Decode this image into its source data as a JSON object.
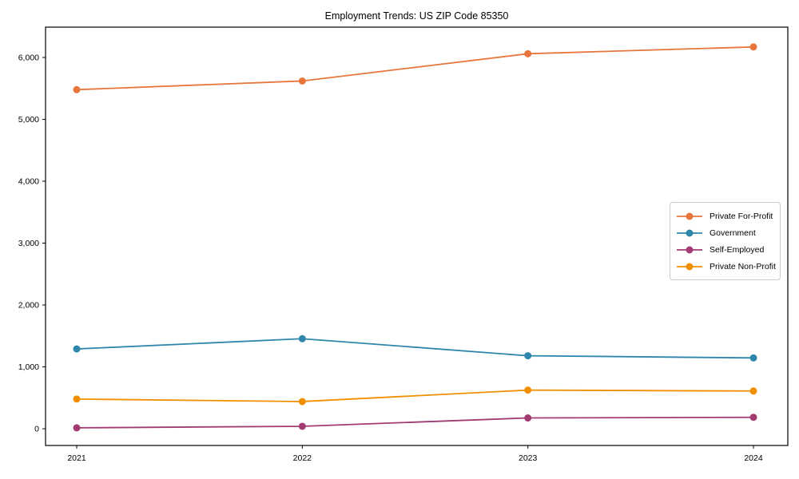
{
  "chart_data": {
    "type": "line",
    "title": "Employment Trends: US ZIP Code 85350",
    "xlabel": "",
    "ylabel": "",
    "grid": false,
    "legend_position": "center-right",
    "marker": "circle",
    "x": [
      2021,
      2022,
      2023,
      2024
    ],
    "x_tick_labels": [
      "2021",
      "2022",
      "2023",
      "2024"
    ],
    "y_ticks": [
      0,
      1000,
      2000,
      3000,
      4000,
      5000,
      6000
    ],
    "y_tick_labels": [
      "0",
      "1,000",
      "2,000",
      "3,000",
      "4,000",
      "5,000",
      "6,000"
    ],
    "ylim": [
      -270,
      6490
    ],
    "series": [
      {
        "name": "Private For-Profit",
        "color": "#E8763C",
        "values": [
          5480,
          5620,
          6060,
          6170
        ]
      },
      {
        "name": "Government",
        "color": "#2E86AB",
        "values": [
          1290,
          1455,
          1180,
          1145
        ]
      },
      {
        "name": "Self-Employed",
        "color": "#A23B72",
        "values": [
          15,
          40,
          175,
          185
        ]
      },
      {
        "name": "Private Non-Profit",
        "color": "#F18F01",
        "values": [
          480,
          440,
          625,
          610
        ]
      }
    ],
    "axis_color": "#000000"
  }
}
